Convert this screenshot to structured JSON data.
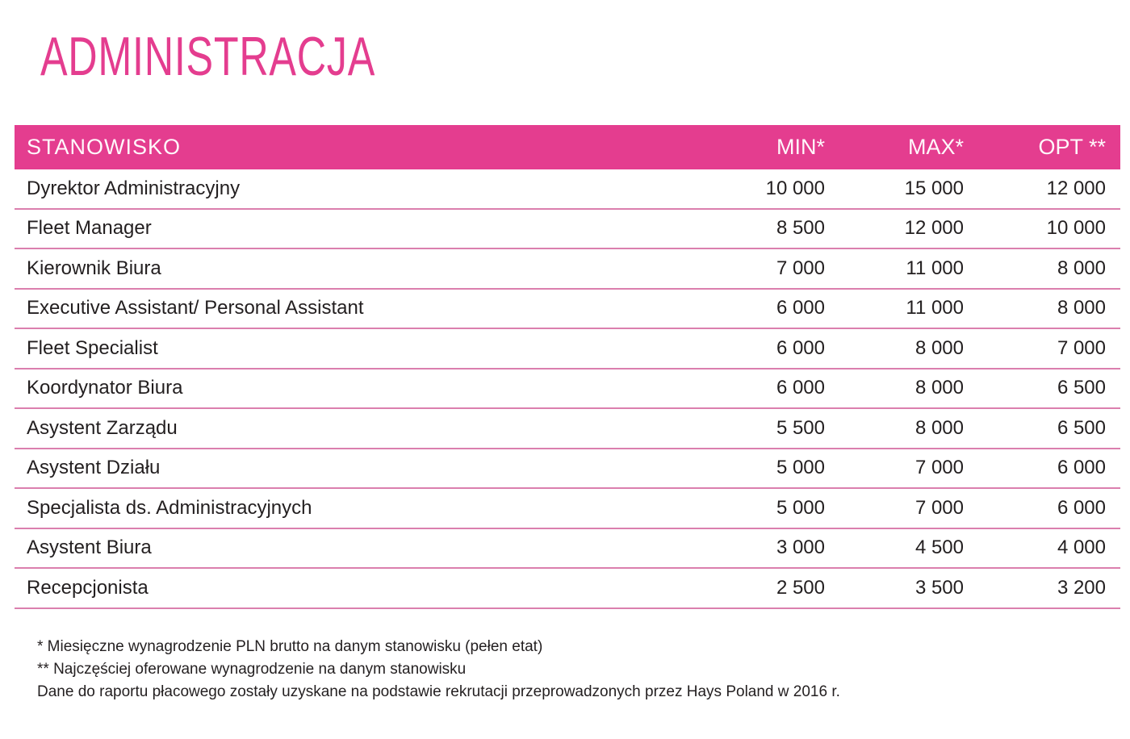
{
  "title": "ADMINISTRACJA",
  "colors": {
    "accent": "#E43D8F",
    "divider": "#DB7FAE",
    "header_text": "#FFF7FB",
    "text": "#231F20"
  },
  "table": {
    "headers": [
      "STANOWISKO",
      "MIN*",
      "MAX*",
      "OPT **"
    ],
    "rows": [
      {
        "position": "Dyrektor Administracyjny",
        "min": "10 000",
        "max": "15 000",
        "opt": "12 000"
      },
      {
        "position": "Fleet Manager",
        "min": "8 500",
        "max": "12 000",
        "opt": "10 000"
      },
      {
        "position": "Kierownik Biura",
        "min": "7 000",
        "max": "11 000",
        "opt": "8 000"
      },
      {
        "position": "Executive Assistant/ Personal Assistant",
        "min": "6 000",
        "max": "11 000",
        "opt": "8 000"
      },
      {
        "position": "Fleet Specialist",
        "min": "6 000",
        "max": "8 000",
        "opt": "7 000"
      },
      {
        "position": "Koordynator Biura",
        "min": "6 000",
        "max": "8 000",
        "opt": "6 500"
      },
      {
        "position": "Asystent Zarządu",
        "min": "5 500",
        "max": "8 000",
        "opt": "6 500"
      },
      {
        "position": "Asystent Działu",
        "min": "5 000",
        "max": "7 000",
        "opt": "6 000"
      },
      {
        "position": "Specjalista ds. Administracyjnych",
        "min": "5 000",
        "max": "7 000",
        "opt": "6 000"
      },
      {
        "position": "Asystent Biura",
        "min": "3 000",
        "max": "4 500",
        "opt": "4 000"
      },
      {
        "position": "Recepcjonista",
        "min": "2 500",
        "max": "3 500",
        "opt": "3 200"
      }
    ]
  },
  "footnotes": [
    "* Miesięczne wynagrodzenie PLN brutto na danym stanowisku (pełen etat)",
    "** Najczęściej oferowane wynagrodzenie na danym stanowisku",
    "Dane do raportu płacowego zostały uzyskane na podstawie rekrutacji przeprowadzonych przez Hays Poland w 2016 r."
  ]
}
